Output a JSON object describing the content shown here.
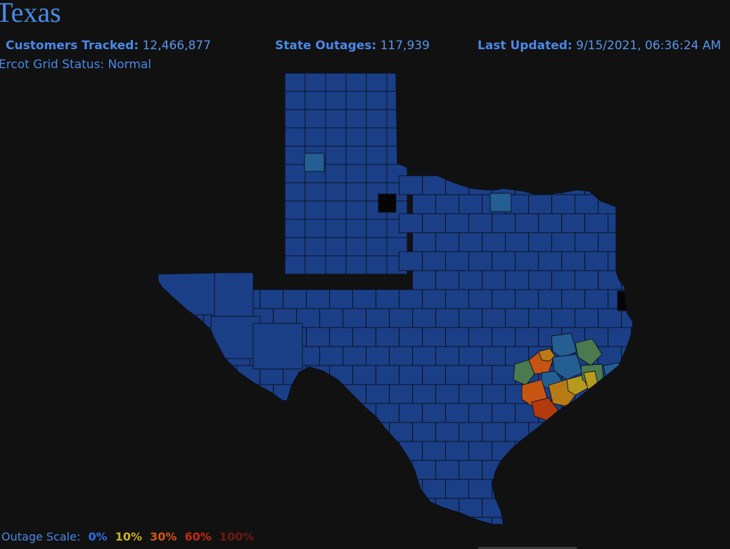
{
  "header": {
    "title": "Texas",
    "customers_label": "Customers Tracked:",
    "customers_value": "12,466,877",
    "outages_label": "State Outages:",
    "outages_value": "117,939",
    "updated_label": "Last Updated:",
    "updated_value": "9/15/2021, 06:36:24 AM",
    "grid_status": "Ercot Grid Status: Normal"
  },
  "legend": {
    "label": "Outage Scale:",
    "steps": [
      {
        "text": "0%",
        "color": "#2f6fe8"
      },
      {
        "text": "10%",
        "color": "#c9b21e"
      },
      {
        "text": "30%",
        "color": "#d65516"
      },
      {
        "text": "60%",
        "color": "#c42a0e"
      },
      {
        "text": "100%",
        "color": "#6e1a10"
      }
    ]
  },
  "map_colors": {
    "default_county": "#1b3f86",
    "light_outage": "#245e92",
    "moderate_outage": "#4a7a4e",
    "low_outage": "#b59a1c",
    "medium_outage": "#b87a14",
    "high_outage": "#c65512",
    "severe_outage": "#b23a0c",
    "no_data": "#050505"
  }
}
